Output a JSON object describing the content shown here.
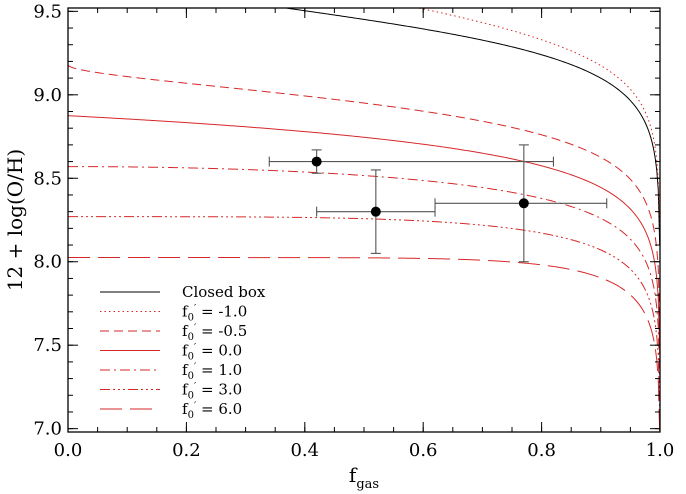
{
  "chart_data": {
    "type": "line",
    "title": "",
    "xlabel": "f",
    "xlabel_sub": "gas",
    "ylabel": "12 + log(O/H)",
    "xlim": [
      0.0,
      1.0
    ],
    "ylim": [
      6.98,
      9.52
    ],
    "x_ticks": [
      "0.0",
      "0.2",
      "0.4",
      "0.6",
      "0.8",
      "1.0"
    ],
    "x_tick_values": [
      0.0,
      0.2,
      0.4,
      0.6,
      0.8,
      1.0
    ],
    "y_ticks": [
      "7.0",
      "7.5",
      "8.0",
      "8.5",
      "9.0",
      "9.5"
    ],
    "y_tick_values": [
      7.0,
      7.5,
      8.0,
      8.5,
      9.0,
      9.5
    ],
    "legend_position": "bottom-left",
    "grid": false,
    "model": {
      "description_in_chart": "Closed box",
      "closed_box_y_at_f1_intercept": 9.52,
      "curve_anchor_value": 7.2,
      "curve_anchor_log_factor": 0.46
    },
    "series": [
      {
        "name": "Closed box",
        "color": "#000000",
        "dash": "",
        "legend_prefix": "",
        "legend_value": "Closed box",
        "param": null
      },
      {
        "name": "-1.0",
        "color": "#d62728",
        "dash": "1.5,3",
        "legend_prefix": "f",
        "legend_value": "= -1.0",
        "param": -1.0
      },
      {
        "name": "-0.5",
        "color": "#d62728",
        "dash": "9,5",
        "legend_prefix": "f",
        "legend_value": "= -0.5",
        "param": -0.5
      },
      {
        "name": "0.0",
        "color": "#d62728",
        "dash": "",
        "legend_prefix": "f",
        "legend_value": "=  0.0",
        "param": 0.0
      },
      {
        "name": "1.0",
        "color": "#d62728",
        "dash": "10,4,2,4",
        "legend_prefix": "f",
        "legend_value": "=  1.0",
        "param": 1.0
      },
      {
        "name": "3.0",
        "color": "#d62728",
        "dash": "10,3,2,3,2,3,2,3",
        "legend_prefix": "f",
        "legend_value": "=  3.0",
        "param": 3.0
      },
      {
        "name": "6.0",
        "color": "#d62728",
        "dash": "22,8",
        "legend_prefix": "f",
        "legend_value": "=  6.0",
        "param": 6.0
      }
    ],
    "legend_sub": "0",
    "legend_prime": "′",
    "points": [
      {
        "x": 0.42,
        "y": 8.6,
        "xerr": [
          0.34,
          0.82
        ],
        "yerr": [
          8.53,
          8.67
        ]
      },
      {
        "x": 0.52,
        "y": 8.3,
        "xerr": [
          0.42,
          0.62
        ],
        "yerr": [
          8.05,
          8.55
        ]
      },
      {
        "x": 0.77,
        "y": 8.35,
        "xerr": [
          0.62,
          0.91
        ],
        "yerr": [
          8.0,
          8.7
        ]
      }
    ]
  }
}
